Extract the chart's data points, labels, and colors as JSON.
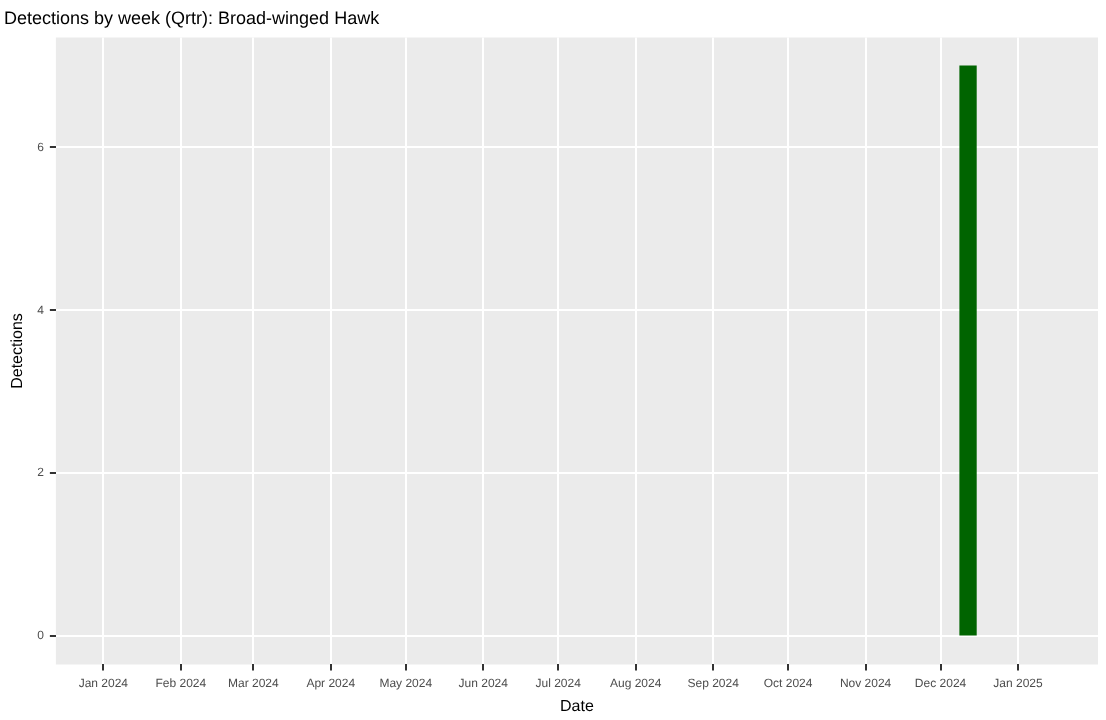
{
  "chart_data": {
    "type": "bar",
    "title": "Detections by week (Qrtr): Broad-winged Hawk",
    "xlabel": "Date",
    "ylabel": "Detections",
    "x": [
      "2024-12-12"
    ],
    "values": [
      7
    ],
    "color": "#006400",
    "xlim": [
      "2023-12-13",
      "2025-02-02"
    ],
    "xticks": [
      {
        "value": "2024-01-01",
        "label": "Jan 2024"
      },
      {
        "value": "2024-02-01",
        "label": "Feb 2024"
      },
      {
        "value": "2024-03-01",
        "label": "Mar 2024"
      },
      {
        "value": "2024-04-01",
        "label": "Apr 2024"
      },
      {
        "value": "2024-05-01",
        "label": "May 2024"
      },
      {
        "value": "2024-06-01",
        "label": "Jun 2024"
      },
      {
        "value": "2024-07-01",
        "label": "Jul 2024"
      },
      {
        "value": "2024-08-01",
        "label": "Aug 2024"
      },
      {
        "value": "2024-09-01",
        "label": "Sep 2024"
      },
      {
        "value": "2024-10-01",
        "label": "Oct 2024"
      },
      {
        "value": "2024-11-01",
        "label": "Nov 2024"
      },
      {
        "value": "2024-12-01",
        "label": "Dec 2024"
      },
      {
        "value": "2025-01-01",
        "label": "Jan 2025"
      }
    ],
    "ylim": [
      -0.35,
      7.35
    ],
    "yticks": [
      0,
      2,
      4,
      6
    ],
    "grid": true
  }
}
